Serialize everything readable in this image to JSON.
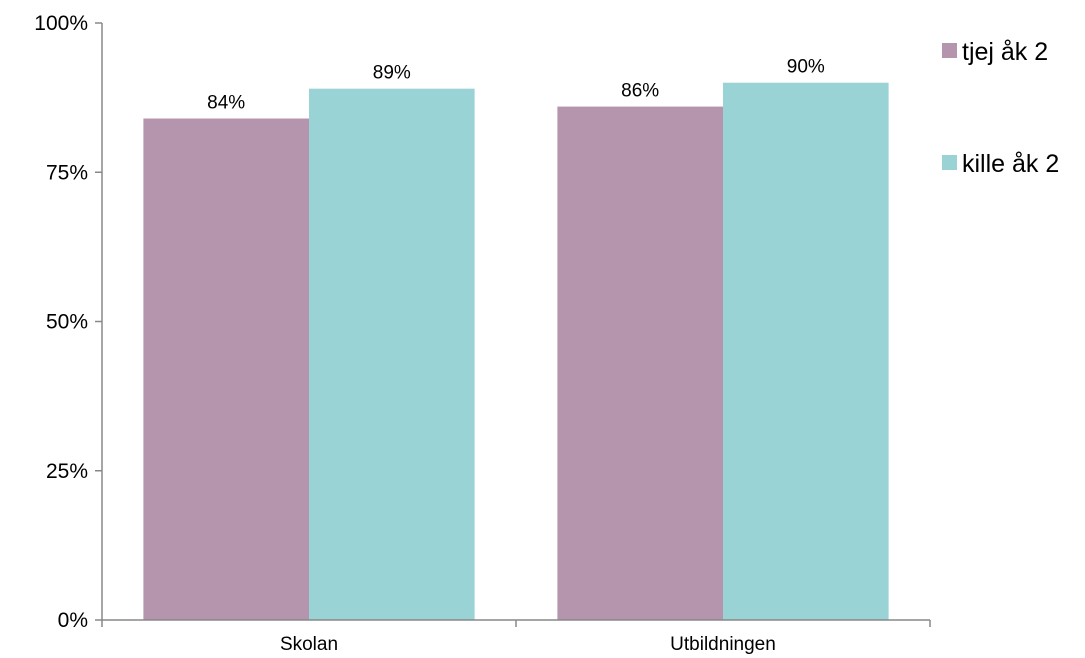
{
  "chart_data": {
    "type": "bar",
    "title": "",
    "xlabel": "",
    "ylabel": "",
    "categories": [
      "Skolan",
      "Utbildningen"
    ],
    "series": [
      {
        "name": "tjej åk 2",
        "values": [
          84,
          86
        ],
        "labels": [
          "84%",
          "86%"
        ],
        "color": "#b594ae"
      },
      {
        "name": "kille åk 2",
        "values": [
          89,
          90
        ],
        "labels": [
          "89%",
          "90%"
        ],
        "color": "#9ad3d6"
      }
    ],
    "ylim": [
      0,
      100
    ],
    "yticks": [
      0,
      25,
      50,
      75,
      100
    ],
    "ytick_labels": [
      "0%",
      "25%",
      "50%",
      "75%",
      "100%"
    ],
    "grid": false,
    "legend_position": "right"
  }
}
